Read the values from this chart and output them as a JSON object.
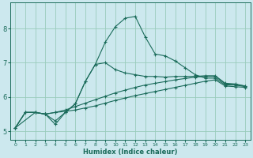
{
  "xlabel": "Humidex (Indice chaleur)",
  "bg_color": "#cce8ee",
  "grid_color": "#99ccbb",
  "line_color": "#1a6b5a",
  "xlim": [
    -0.5,
    23.5
  ],
  "ylim": [
    4.75,
    8.75
  ],
  "xticks": [
    0,
    1,
    2,
    3,
    4,
    5,
    6,
    7,
    8,
    9,
    10,
    11,
    12,
    13,
    14,
    15,
    16,
    17,
    18,
    19,
    20,
    21,
    22,
    23
  ],
  "yticks": [
    5,
    6,
    7,
    8
  ],
  "line_peaked_x": [
    0,
    1,
    2,
    3,
    4,
    5,
    6,
    7,
    8,
    9,
    10,
    11,
    12,
    13,
    14,
    15,
    16,
    17,
    18,
    19,
    20,
    21,
    22,
    23
  ],
  "line_peaked_y": [
    5.1,
    5.55,
    5.55,
    5.5,
    5.3,
    5.55,
    5.8,
    6.45,
    6.95,
    7.6,
    8.05,
    8.3,
    8.35,
    7.75,
    7.25,
    7.2,
    7.05,
    6.85,
    6.65,
    6.55,
    6.55,
    6.35,
    6.35,
    6.3
  ],
  "line_dip_x": [
    0,
    2,
    3,
    4,
    5,
    6,
    7,
    8,
    9,
    10,
    11,
    12,
    13,
    14,
    15,
    16,
    17,
    18,
    19,
    20,
    21,
    22,
    23
  ],
  "line_dip_y": [
    5.1,
    5.55,
    5.5,
    5.2,
    5.55,
    5.8,
    6.45,
    6.95,
    7.0,
    6.8,
    6.7,
    6.65,
    6.6,
    6.6,
    6.58,
    6.6,
    6.6,
    6.6,
    6.62,
    6.62,
    6.4,
    6.38,
    6.32
  ],
  "line_mid_x": [
    0,
    1,
    2,
    3,
    4,
    5,
    6,
    7,
    8,
    9,
    10,
    11,
    12,
    13,
    14,
    15,
    16,
    17,
    18,
    19,
    20,
    21,
    22,
    23
  ],
  "line_mid_y": [
    5.1,
    5.55,
    5.55,
    5.5,
    5.55,
    5.62,
    5.72,
    5.82,
    5.92,
    6.02,
    6.12,
    6.2,
    6.28,
    6.35,
    6.4,
    6.45,
    6.5,
    6.54,
    6.58,
    6.6,
    6.6,
    6.38,
    6.36,
    6.32
  ],
  "line_flat_x": [
    0,
    1,
    2,
    3,
    4,
    5,
    6,
    7,
    8,
    9,
    10,
    11,
    12,
    13,
    14,
    15,
    16,
    17,
    18,
    19,
    20,
    21,
    22,
    23
  ],
  "line_flat_y": [
    5.1,
    5.55,
    5.55,
    5.5,
    5.55,
    5.58,
    5.62,
    5.68,
    5.74,
    5.82,
    5.9,
    5.97,
    6.04,
    6.1,
    6.16,
    6.22,
    6.28,
    6.34,
    6.4,
    6.46,
    6.5,
    6.32,
    6.3,
    6.28
  ]
}
